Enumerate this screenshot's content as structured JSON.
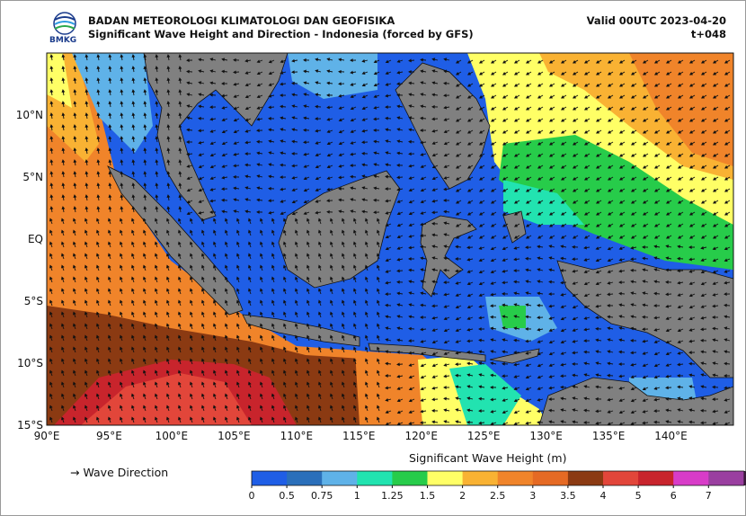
{
  "header": {
    "agency": "BADAN METEOROLOGI KLIMATOLOGI DAN GEOFISIKA",
    "title": "Significant Wave Height and Direction - Indonesia (forced by GFS)",
    "valid": "Valid 00UTC 2023-04-20",
    "lead": "t+048",
    "logo_text": "BMKG"
  },
  "map": {
    "lon_ticks": [
      "90°E",
      "95°E",
      "100°E",
      "105°E",
      "110°E",
      "115°E",
      "120°E",
      "125°E",
      "130°E",
      "135°E",
      "140°E"
    ],
    "lat_ticks": [
      "10°N",
      "5°N",
      "EQ",
      "5°S",
      "10°S",
      "15°S"
    ],
    "lon_range": [
      90,
      145
    ],
    "lat_range": [
      -15,
      15
    ],
    "land_color": "#808080",
    "arrow_color": "#111111"
  },
  "legend": {
    "wave_direction": "→  Wave Direction"
  },
  "colorbar": {
    "title": "Significant Wave Height (m)",
    "levels": [
      "0",
      "0.5",
      "0.75",
      "1",
      "1.25",
      "1.5",
      "2",
      "2.5",
      "3",
      "3.5",
      "4",
      "5",
      "6",
      "7"
    ],
    "colors": [
      "#1f5ee6",
      "#2a6fba",
      "#5fb2e8",
      "#22e3b0",
      "#27cc4a",
      "#ffff66",
      "#f9b233",
      "#f0842a",
      "#e56a24",
      "#8b3a12",
      "#e2463a",
      "#c8242c",
      "#d83cc8",
      "#9a3fa0"
    ],
    "extend_color": "#3a1a3a"
  }
}
